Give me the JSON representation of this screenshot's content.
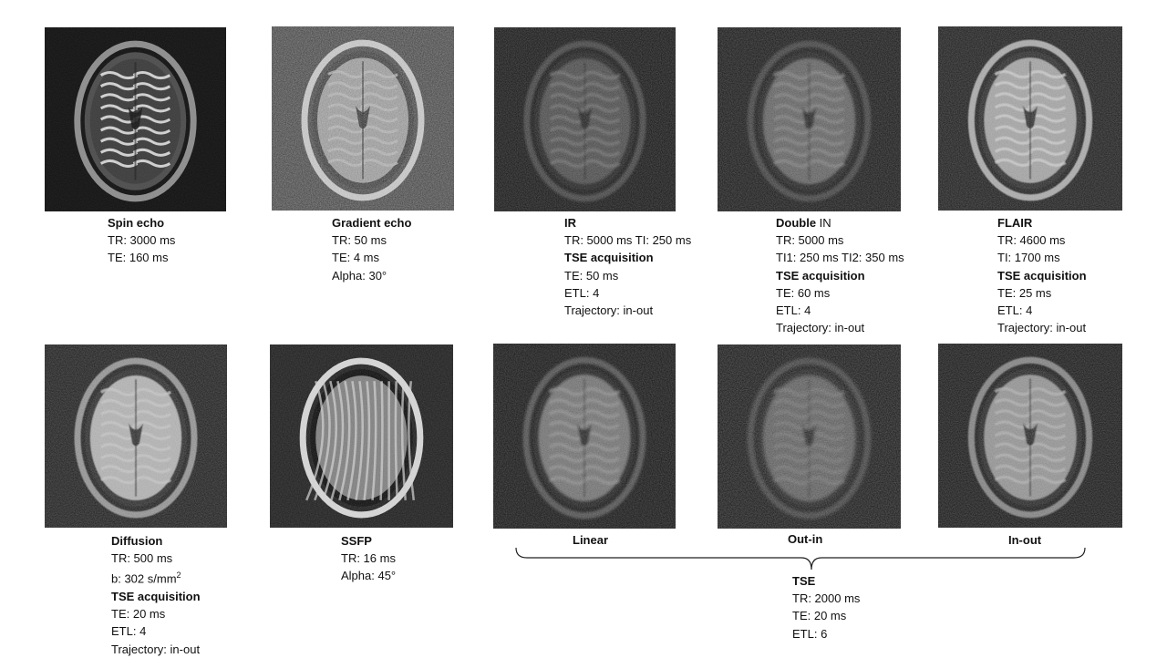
{
  "panels": [
    {
      "key": "spin_echo",
      "style": "spin",
      "title": "Spin echo",
      "lines": [
        "TR: 3000 ms",
        "TE: 160 ms"
      ]
    },
    {
      "key": "gradient_echo",
      "style": "gradient",
      "title": "Gradient echo",
      "lines": [
        "TR: 50 ms",
        "TE: 4 ms",
        "Alpha: 30°"
      ]
    },
    {
      "key": "ir",
      "style": "ir",
      "title": "IR",
      "lines": [
        "TR: 5000 ms TI: 250 ms"
      ],
      "sub_title": "TSE acquisition",
      "sub_lines": [
        "TE: 50 ms",
        "ETL: 4",
        "Trajectory:  in-out"
      ]
    },
    {
      "key": "double_in",
      "style": "double",
      "title": "Double",
      "title_suffix": " IN",
      "lines": [
        "TR: 5000 ms",
        "TI1: 250 ms TI2: 350 ms"
      ],
      "sub_title": "TSE acquisition",
      "sub_lines": [
        "TE: 60 ms",
        "ETL: 4",
        "Trajectory:  in-out"
      ]
    },
    {
      "key": "flair",
      "style": "flair",
      "title": "FLAIR",
      "lines": [
        "TR: 4600 ms",
        "TI: 1700 ms"
      ],
      "sub_title": "TSE acquisition",
      "sub_lines": [
        "TE: 25 ms",
        "ETL: 4",
        "Trajectory:  in-out"
      ]
    },
    {
      "key": "diffusion",
      "style": "diffusion",
      "title": "Diffusion",
      "lines": [
        "TR: 500 ms"
      ],
      "b_line": {
        "prefix": "b: 302 s/mm",
        "sup": "2"
      },
      "sub_title": "TSE acquisition",
      "sub_lines": [
        "TE: 20 ms",
        "ETL: 4",
        "Trajectory:  in-out"
      ]
    },
    {
      "key": "ssfp",
      "style": "ssfp",
      "title": "SSFP",
      "lines": [
        "TR: 16 ms",
        "Alpha: 45°"
      ]
    },
    {
      "key": "linear",
      "style": "linear",
      "label": "Linear"
    },
    {
      "key": "out_in",
      "style": "outin",
      "label": "Out-in"
    },
    {
      "key": "in_out",
      "style": "inout",
      "label": "In-out"
    }
  ],
  "tse_group": {
    "title": "TSE",
    "lines": [
      "TR: 2000 ms",
      "TE: 20 ms",
      "ETL: 6"
    ]
  }
}
